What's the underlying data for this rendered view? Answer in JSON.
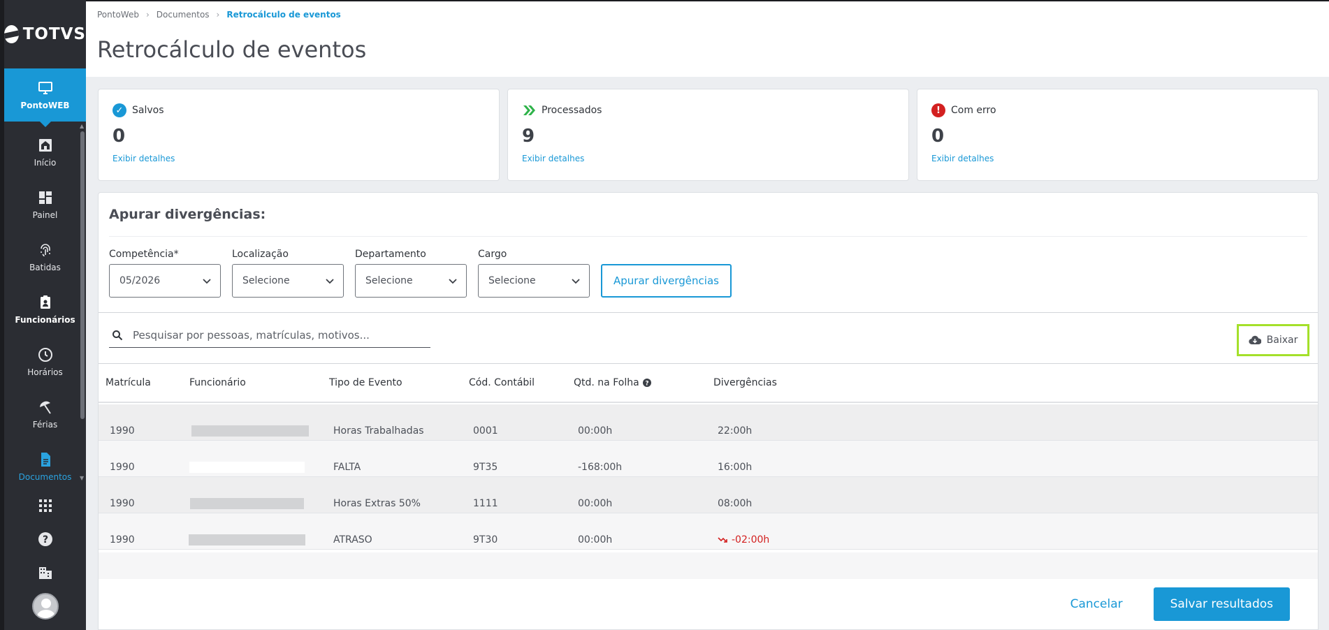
{
  "brand": {
    "logo_text": "TOTVS"
  },
  "sidebar": {
    "active": {
      "label": "PontoWEB",
      "icon": "monitor-icon"
    },
    "items": [
      {
        "label": "Início",
        "icon": "home-icon"
      },
      {
        "label": "Painel",
        "icon": "dashboard-icon"
      },
      {
        "label": "Batidas",
        "icon": "fingerprint-icon"
      },
      {
        "label": "Funcionários",
        "icon": "badge-icon"
      },
      {
        "label": "Horários",
        "icon": "clock-icon"
      },
      {
        "label": "Férias",
        "icon": "beach-umbrella-icon"
      },
      {
        "label": "Documentos",
        "icon": "document-icon"
      }
    ],
    "bottom": [
      "apps-grid-icon",
      "help-icon",
      "building-icon",
      "avatar"
    ]
  },
  "breadcrumb": [
    "PontoWeb",
    "Documentos",
    "Retrocálculo de eventos"
  ],
  "page_title": "Retrocálculo de eventos",
  "cards": [
    {
      "label": "Salvos",
      "value": "0",
      "link": "Exibir detalhes",
      "icon": "check-circle-icon",
      "color": "#1998d6"
    },
    {
      "label": "Processados",
      "value": "9",
      "link": "Exibir detalhes",
      "icon": "double-chevron-icon",
      "color": "#2fb34a"
    },
    {
      "label": "Com erro",
      "value": "0",
      "link": "Exibir detalhes",
      "icon": "error-circle-icon",
      "color": "#d32020"
    }
  ],
  "panel": {
    "title": "Apurar divergências:",
    "filters": [
      {
        "label": "Competência*",
        "value": "05/2026"
      },
      {
        "label": "Localização",
        "value": "Selecione"
      },
      {
        "label": "Departamento",
        "value": "Selecione"
      },
      {
        "label": "Cargo",
        "value": "Selecione"
      }
    ],
    "apply_label": "Apurar divergências",
    "search_placeholder": "Pesquisar por pessoas, matrículas, motivos...",
    "download_label": "Baixar"
  },
  "table": {
    "columns": [
      "Matrícula",
      "Funcionário",
      "Tipo de Evento",
      "Cód. Contábil",
      "Qtd. na Folha",
      "Divergências"
    ],
    "rows": [
      {
        "matricula": "1990",
        "tipo": "Horas Trabalhadas",
        "cod": "0001",
        "qtd": "00:00h",
        "div": "22:00h"
      },
      {
        "matricula": "1990",
        "tipo": "FALTA",
        "cod": "9T35",
        "qtd": "-168:00h",
        "div": "16:00h"
      },
      {
        "matricula": "1990",
        "tipo": "Horas Extras 50%",
        "cod": "1111",
        "qtd": "00:00h",
        "div": "08:00h"
      },
      {
        "matricula": "1990",
        "tipo": "ATRASO",
        "cod": "9T30",
        "qtd": "00:00h",
        "div": "-02:00h"
      }
    ]
  },
  "actions": {
    "cancel_label": "Cancelar",
    "save_label": "Salvar resultados"
  }
}
